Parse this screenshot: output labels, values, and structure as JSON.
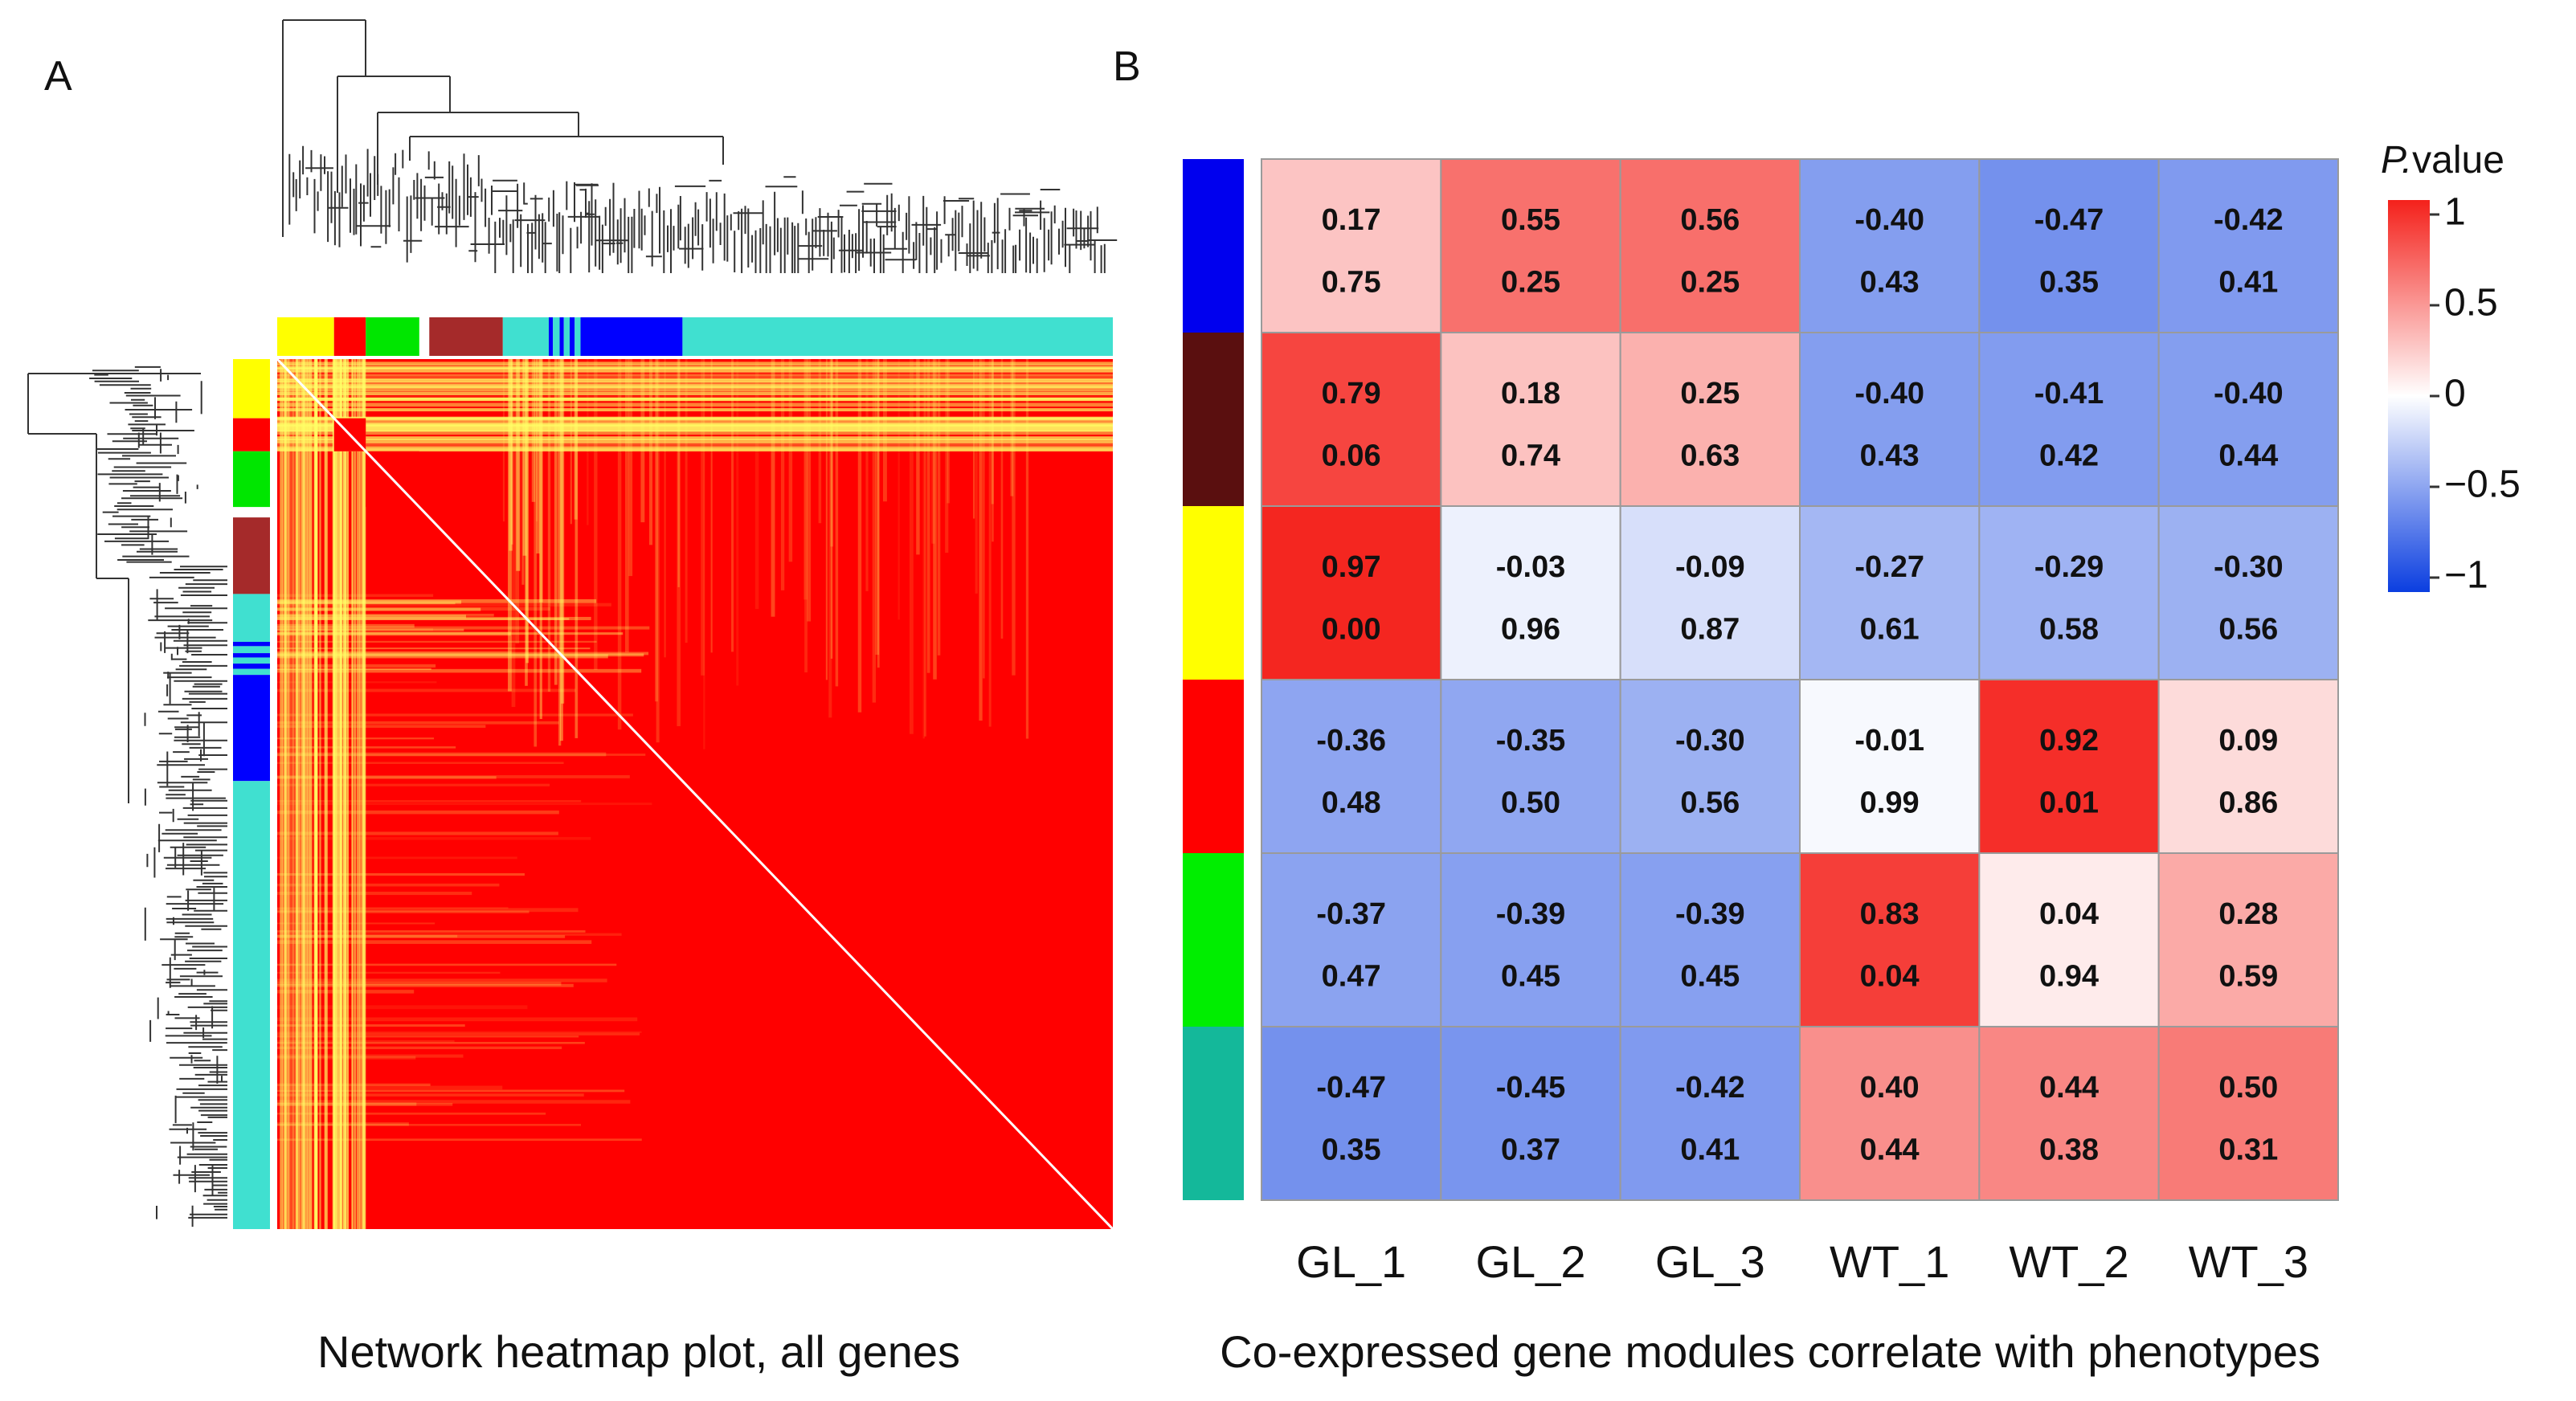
{
  "panel_a": {
    "label": "A",
    "caption": "Network heatmap plot, all genes",
    "module_colors": [
      {
        "name": "yellow",
        "color": "#ffff00"
      },
      {
        "name": "red",
        "color": "#ff0000"
      },
      {
        "name": "green",
        "color": "#00e600"
      },
      {
        "name": "brown",
        "color": "#a52a2a"
      },
      {
        "name": "turquoise",
        "color": "#40e0d0"
      },
      {
        "name": "blue",
        "color": "#0000ff"
      }
    ],
    "heatmap_color": "#ff0000",
    "highlight_color": "#ffff66"
  },
  "panel_b": {
    "label": "B",
    "caption": "Co-expressed gene modules correlate with phenotypes"
  },
  "chart_data": {
    "type": "heatmap",
    "title": "Co-expressed gene modules correlate with phenotypes",
    "columns": [
      "GL_1",
      "GL_2",
      "GL_3",
      "WT_1",
      "WT_2",
      "WT_3"
    ],
    "rows": [
      {
        "module": "blue",
        "color": "#0000ee",
        "correlation": [
          "0.17",
          "0.55",
          "0.56",
          "-0.40",
          "-0.47",
          "-0.42"
        ],
        "pvalue": [
          "0.75",
          "0.25",
          "0.25",
          "0.43",
          "0.35",
          "0.41"
        ]
      },
      {
        "module": "darkred",
        "color": "#5a0f0f",
        "correlation": [
          "0.79",
          "0.18",
          "0.25",
          "-0.40",
          "-0.41",
          "-0.40"
        ],
        "pvalue": [
          "0.06",
          "0.74",
          "0.63",
          "0.43",
          "0.42",
          "0.44"
        ]
      },
      {
        "module": "yellow",
        "color": "#ffff00",
        "correlation": [
          "0.97",
          "-0.03",
          "-0.09",
          "-0.27",
          "-0.29",
          "-0.30"
        ],
        "pvalue": [
          "0.00",
          "0.96",
          "0.87",
          "0.61",
          "0.58",
          "0.56"
        ]
      },
      {
        "module": "red",
        "color": "#ff0000",
        "correlation": [
          "-0.36",
          "-0.35",
          "-0.30",
          "-0.01",
          "0.92",
          "0.09"
        ],
        "pvalue": [
          "0.48",
          "0.50",
          "0.56",
          "0.99",
          "0.01",
          "0.86"
        ]
      },
      {
        "module": "green",
        "color": "#00ee00",
        "correlation": [
          "-0.37",
          "-0.39",
          "-0.39",
          "0.83",
          "0.04",
          "0.28"
        ],
        "pvalue": [
          "0.47",
          "0.45",
          "0.45",
          "0.04",
          "0.94",
          "0.59"
        ]
      },
      {
        "module": "turquoise",
        "color": "#14b89a",
        "correlation": [
          "-0.47",
          "-0.45",
          "-0.42",
          "0.40",
          "0.44",
          "0.50"
        ],
        "pvalue": [
          "0.35",
          "0.37",
          "0.41",
          "0.44",
          "0.38",
          "0.31"
        ]
      }
    ],
    "legend": {
      "title_italic": "P.",
      "title_rest": "value",
      "ticks": [
        "1",
        "0.5",
        "0",
        "−0.5",
        "−1"
      ],
      "range": [
        -1,
        1
      ],
      "colors": {
        "low": "#0b3ee0",
        "mid": "#ffffff",
        "high": "#f4211b"
      }
    }
  }
}
